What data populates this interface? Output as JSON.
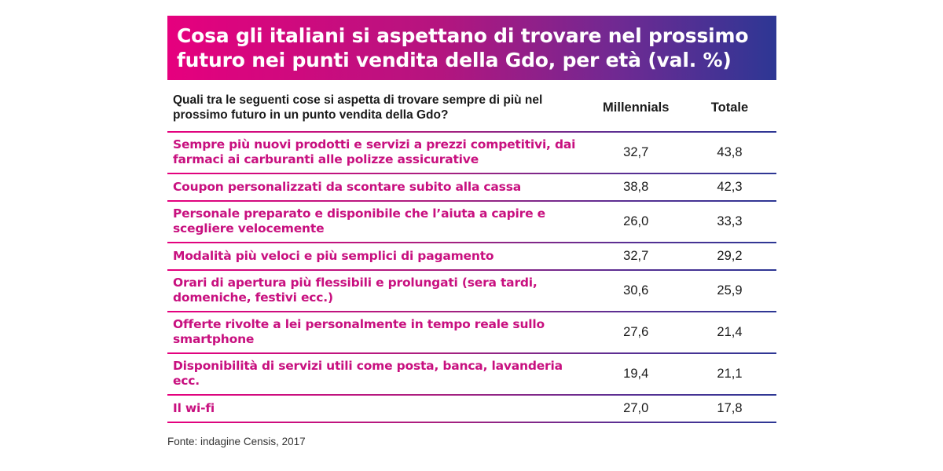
{
  "chart_data": {
    "type": "table",
    "title": "Cosa gli italiani si aspettano di trovare nel prossimo futuro nei punti vendita della Gdo, per età (val. %)",
    "columns": [
      "Quali tra le seguenti cose si aspetta di trovare sempre di più nel prossimo futuro in un punto vendita della Gdo?",
      "Millennials",
      "Totale"
    ],
    "rows": [
      {
        "label": "Sempre più nuovi prodotti e servizi a prezzi competitivi, dai farmaci ai carburanti alle polizze assicurative",
        "millennials": "32,7",
        "totale": "43,8"
      },
      {
        "label": "Coupon personalizzati da scontare subito alla cassa",
        "millennials": "38,8",
        "totale": "42,3"
      },
      {
        "label": "Personale preparato e disponibile che l’aiuta a capire e scegliere velocemente",
        "millennials": "26,0",
        "totale": "33,3"
      },
      {
        "label": "Modalità più veloci e più semplici di pagamento",
        "millennials": "32,7",
        "totale": "29,2"
      },
      {
        "label": "Orari di apertura più flessibili e prolungati (sera tardi, domeniche, festivi ecc.)",
        "millennials": "30,6",
        "totale": "25,9"
      },
      {
        "label": "Offerte rivolte a lei personalmente in tempo reale sullo smartphone",
        "millennials": "27,6",
        "totale": "21,4"
      },
      {
        "label": "Disponibilità di servizi utili come posta, banca, lavanderia ecc.",
        "millennials": "19,4",
        "totale": "21,1"
      },
      {
        "label": "Il wi-fi",
        "millennials": "27,0",
        "totale": "17,8"
      }
    ],
    "source": "Fonte: indagine Censis, 2017"
  },
  "colors": {
    "title_gradient_start": "#e6007e",
    "title_gradient_end": "#2d3794",
    "row_label": "#c8107f"
  }
}
